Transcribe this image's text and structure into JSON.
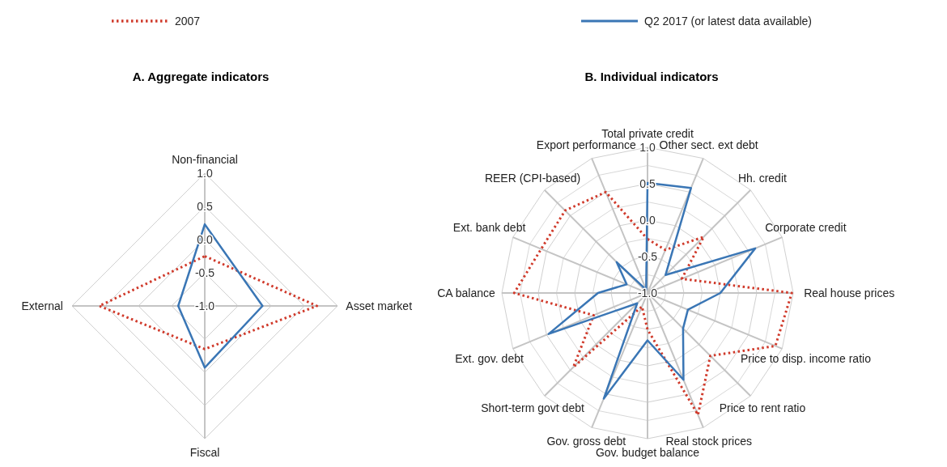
{
  "chart_data": [
    {
      "type": "radar",
      "title": "A. Aggregate indicators",
      "categories": [
        "Non-financial",
        "Asset market",
        "Fiscal",
        "External"
      ],
      "ylim": [
        -1,
        1
      ],
      "yticks": [
        {
          "value": -1,
          "label": "-1.0"
        },
        {
          "value": -0.5,
          "label": "-0.5"
        },
        {
          "value": 0,
          "label": "0.0"
        },
        {
          "value": 0.5,
          "label": "0.5"
        },
        {
          "value": 1,
          "label": "1.0"
        }
      ],
      "grid": true,
      "legend": "top",
      "series": [
        {
          "name": "2007",
          "color": "#d03a2b",
          "line_style": "dotted",
          "values": [
            -0.25,
            0.69,
            -0.35,
            0.59
          ]
        },
        {
          "name": "Q2 2017 (or latest data available)",
          "color": "#3a76b5",
          "line_style": "solid",
          "values": [
            0.23,
            -0.13,
            -0.07,
            -0.6
          ]
        }
      ]
    },
    {
      "type": "radar",
      "title": "B.  Individual indicators",
      "categories": [
        "Total private credit",
        "Other sect. ext debt",
        "Hh. credit",
        "Corporate credit",
        "Real house prices",
        "Price to disp. income ratio",
        "Price to rent ratio",
        "Real stock prices",
        "Gov. budget balance",
        "Gov. gross debt",
        "Short-term govt debt",
        "Ext. gov. debt",
        "CA balance",
        "Ext. bank debt",
        "REER (CPI-based)",
        "Export performance"
      ],
      "ylim": [
        -1,
        1
      ],
      "yticks": [
        {
          "value": -1,
          "label": "-1.0"
        },
        {
          "value": -0.5,
          "label": "-0.5"
        },
        {
          "value": 0,
          "label": "0.0"
        },
        {
          "value": 0.5,
          "label": "0.5"
        },
        {
          "value": 1,
          "label": "1.0"
        }
      ],
      "grid": true,
      "series": [
        {
          "color": "#d03a2b",
          "line_style": "dotted",
          "values": [
            -0.26,
            -0.36,
            0.09,
            -0.49,
            0.98,
            0.9,
            0.22,
            0.81,
            -0.5,
            -0.8,
            0.44,
            -0.2,
            0.83,
            0.58,
            0.6,
            0.5
          ]
        },
        {
          "color": "#3a76b5",
          "line_style": "solid",
          "values": [
            0.51,
            0.56,
            -0.65,
            0.6,
            0.0,
            -0.4,
            -0.31,
            0.29,
            -0.35,
            0.57,
            -0.8,
            0.47,
            -0.32,
            -0.69,
            -0.4,
            -0.95
          ]
        }
      ]
    }
  ]
}
